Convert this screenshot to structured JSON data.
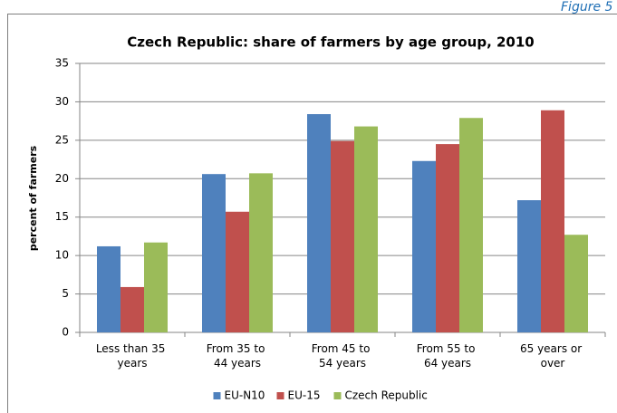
{
  "figure_label": "Figure 5",
  "chart_data": {
    "type": "bar",
    "title": "Czech Republic: share of farmers by age group, 2010",
    "y_label": "percent of farmers",
    "categories": [
      "Less than 35 years",
      "From 35 to 44 years",
      "From 45 to 54 years",
      "From 55 to 64 years",
      "65 years or over"
    ],
    "series": [
      {
        "name": "EU-N10",
        "color": "#4f81bd",
        "values": [
          11.2,
          20.6,
          28.4,
          22.3,
          17.2
        ]
      },
      {
        "name": "EU-15",
        "color": "#c0504d",
        "values": [
          5.9,
          15.7,
          24.9,
          24.5,
          28.9
        ]
      },
      {
        "name": "Czech Republic",
        "color": "#9bbb59",
        "values": [
          11.7,
          20.7,
          26.8,
          27.9,
          12.7
        ]
      }
    ],
    "ylim": [
      0,
      35
    ],
    "yticks": [
      0,
      5,
      10,
      15,
      20,
      25,
      30,
      35
    ],
    "grid": true,
    "legend": "bottom"
  }
}
